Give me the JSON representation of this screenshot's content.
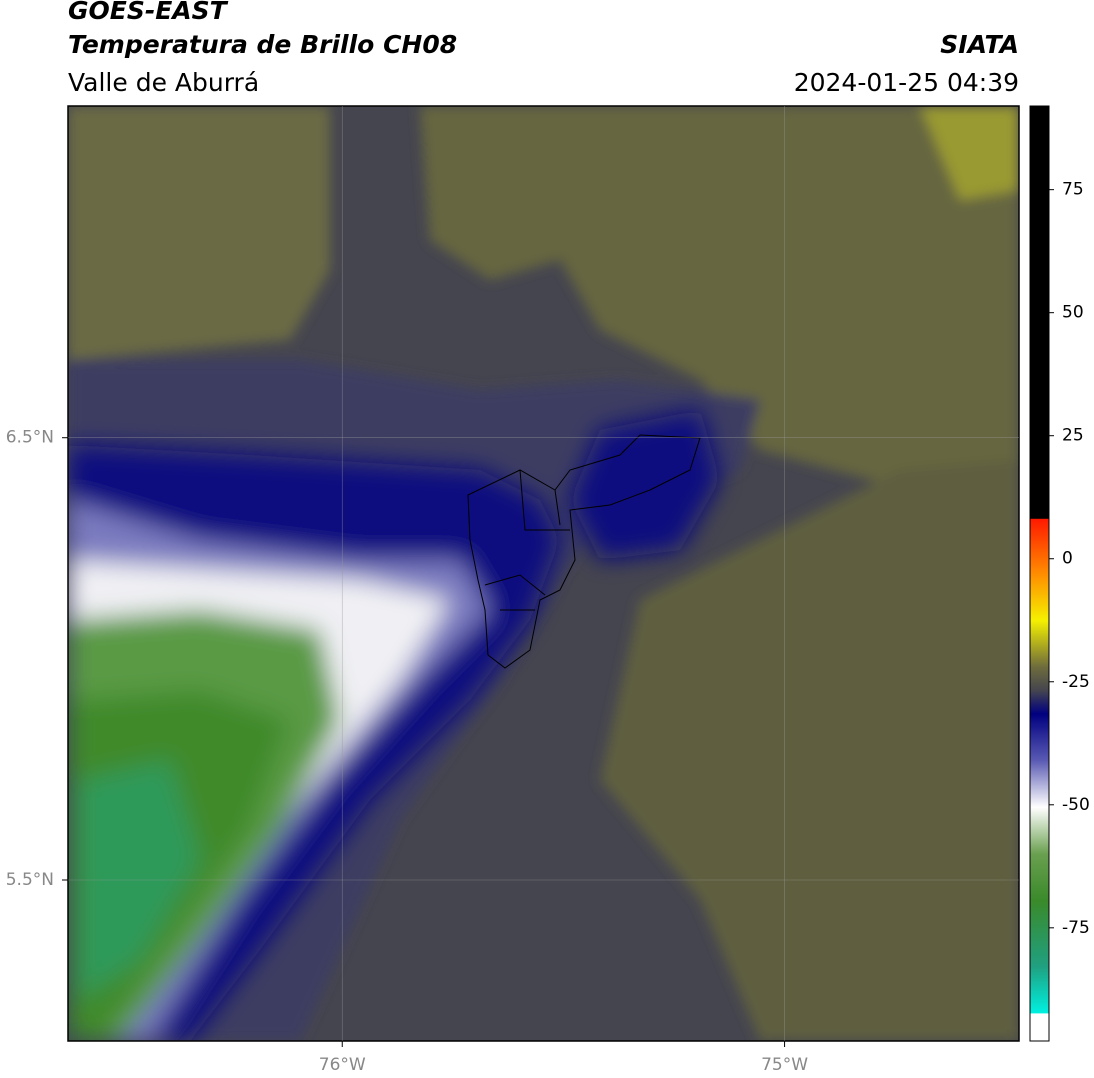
{
  "header": {
    "title": "GOES-EAST",
    "subtitle": "Temperatura de Brillo CH08",
    "region": "Valle de Aburrá",
    "source": "SIATA",
    "datetime": "2024-01-25 04:39"
  },
  "map": {
    "latlim": [
      5.136,
      7.25
    ],
    "lonlim": [
      -76.62,
      -74.47
    ],
    "lat_ticks": [
      {
        "value": 6.5,
        "label": "6.5°N"
      },
      {
        "value": 5.5,
        "label": "5.5°N"
      }
    ],
    "lon_ticks": [
      {
        "value": -76,
        "label": "76°W"
      },
      {
        "value": -75,
        "label": "75°W"
      }
    ],
    "grid": true
  },
  "colorbar": {
    "lim": [
      -98,
      92
    ],
    "ticks": [
      75,
      50,
      25,
      0,
      -25,
      -50,
      -75
    ]
  }
}
